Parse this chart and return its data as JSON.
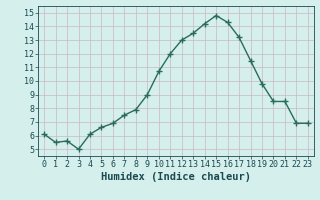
{
  "x": [
    0,
    1,
    2,
    3,
    4,
    5,
    6,
    7,
    8,
    9,
    10,
    11,
    12,
    13,
    14,
    15,
    16,
    17,
    18,
    19,
    20,
    21,
    22,
    23
  ],
  "y": [
    6.1,
    5.5,
    5.6,
    5.0,
    6.1,
    6.6,
    6.9,
    7.5,
    7.9,
    9.0,
    10.7,
    12.0,
    13.0,
    13.5,
    14.2,
    14.8,
    14.3,
    13.2,
    11.5,
    9.8,
    8.5,
    8.5,
    6.9,
    6.9
  ],
  "line_color": "#2a6b5e",
  "marker": "+",
  "marker_size": 4,
  "linewidth": 1.0,
  "bg_color": "#d5efec",
  "grid_color": "#c9b8c0",
  "xlabel": "Humidex (Indice chaleur)",
  "xlim": [
    -0.5,
    23.5
  ],
  "ylim": [
    4.5,
    15.5
  ],
  "yticks": [
    5,
    6,
    7,
    8,
    9,
    10,
    11,
    12,
    13,
    14,
    15
  ],
  "xticks": [
    0,
    1,
    2,
    3,
    4,
    5,
    6,
    7,
    8,
    9,
    10,
    11,
    12,
    13,
    14,
    15,
    16,
    17,
    18,
    19,
    20,
    21,
    22,
    23
  ],
  "tick_fontsize": 6,
  "xlabel_fontsize": 7.5,
  "tick_color": "#1a4a50",
  "axis_color": "#1a4a50"
}
